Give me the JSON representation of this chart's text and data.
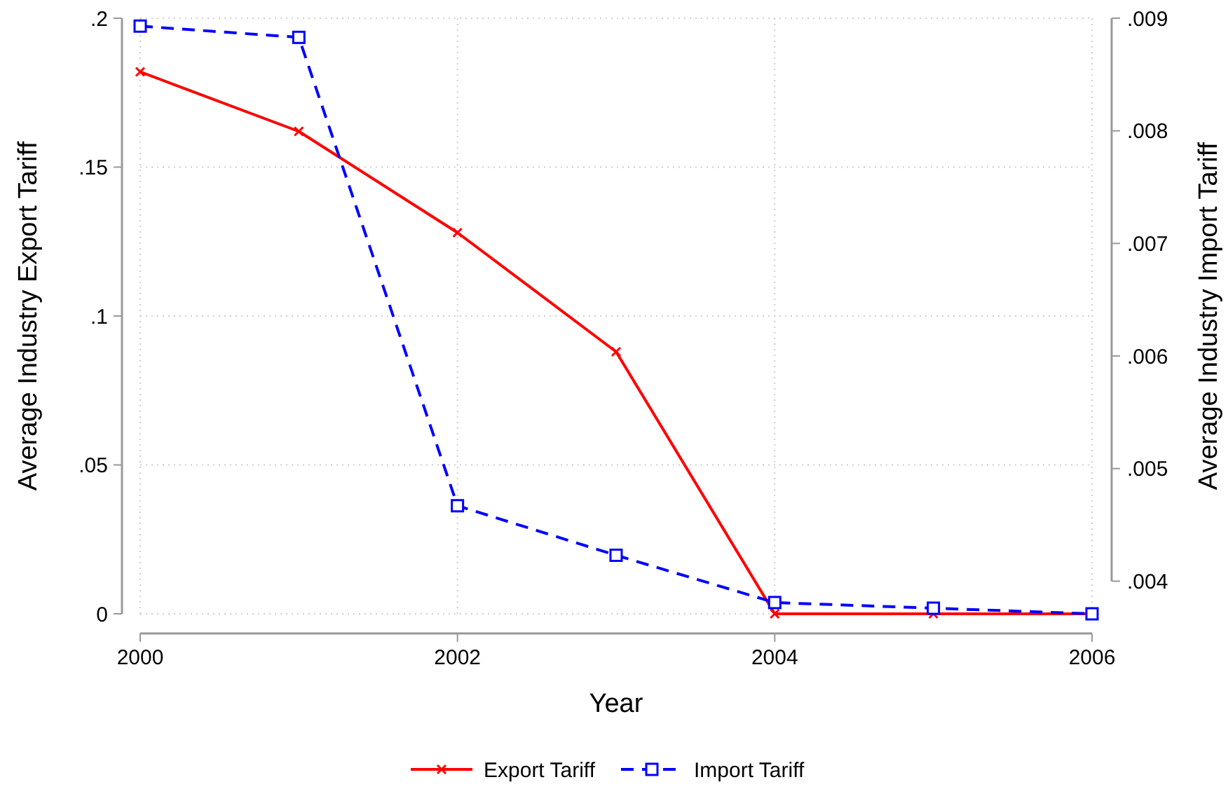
{
  "chart_data": {
    "type": "line",
    "xlabel": "Year",
    "ylabel": "Average Industry Export Tariff",
    "y2label": "Average Industry Import Tariff",
    "x": [
      2000,
      2001,
      2002,
      2003,
      2004,
      2005,
      2006
    ],
    "xlim": [
      2000,
      2006
    ],
    "xticks": [
      2000,
      2002,
      2004,
      2006
    ],
    "ylim": [
      0,
      0.2
    ],
    "yticks": [
      {
        "value": 0,
        "label": "0"
      },
      {
        "value": 0.05,
        "label": ".05"
      },
      {
        "value": 0.1,
        "label": ".1"
      },
      {
        "value": 0.15,
        "label": ".15"
      },
      {
        "value": 0.2,
        "label": ".2"
      }
    ],
    "y2lim": [
      0.00371,
      0.009
    ],
    "y2ticks": [
      {
        "value": 0.004,
        "label": ".004"
      },
      {
        "value": 0.005,
        "label": ".005"
      },
      {
        "value": 0.006,
        "label": ".006"
      },
      {
        "value": 0.007,
        "label": ".007"
      },
      {
        "value": 0.008,
        "label": ".008"
      },
      {
        "value": 0.009,
        "label": ".009"
      }
    ],
    "grid": true,
    "legend": "bottom",
    "series": [
      {
        "name": "Export Tariff",
        "color": "#ff0000",
        "marker": "cross",
        "line_style": "solid",
        "values": [
          0.182,
          0.162,
          0.128,
          0.088,
          0,
          0,
          0
        ]
      },
      {
        "name": "Import Tariff",
        "color": "#0000ff",
        "marker": "square",
        "line_style": "dashed",
        "axis": "y2",
        "values": [
          0.00893,
          0.00883,
          0.00467,
          0.00423,
          0.00381,
          0.00376,
          0.00371
        ]
      }
    ]
  }
}
